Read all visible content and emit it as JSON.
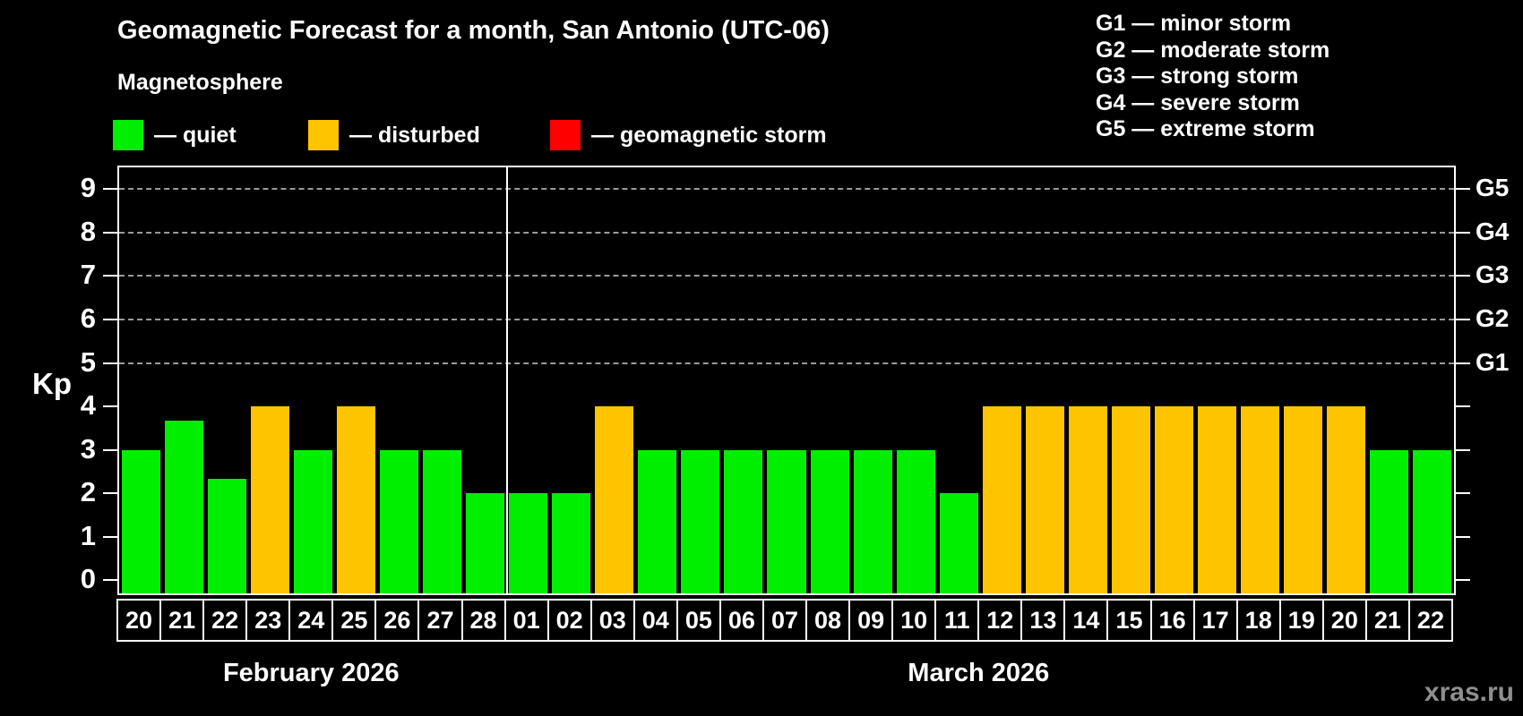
{
  "title": "Geomagnetic Forecast for a month, San Antonio (UTC-06)",
  "subtitle": "Magnetosphere",
  "legend": {
    "quiet_label": "— quiet",
    "disturbed_label": "— disturbed",
    "storm_label": "— geomagnetic storm"
  },
  "g_legend": [
    "G1 — minor storm",
    "G2 — moderate storm",
    "G3 — strong storm",
    "G4 — severe storm",
    "G5 — extreme storm"
  ],
  "watermark": "xras.ru",
  "chart_data": {
    "type": "bar",
    "title": "Geomagnetic Forecast for a month, San Antonio (UTC-06)",
    "ylabel": "Kp",
    "ylim": [
      0,
      9.5
    ],
    "yticks": [
      0,
      1,
      2,
      3,
      4,
      5,
      6,
      7,
      8,
      9
    ],
    "grid_levels": [
      5,
      6,
      7,
      8,
      9
    ],
    "right_axis": [
      {
        "kp": 5,
        "label": "G1"
      },
      {
        "kp": 6,
        "label": "G2"
      },
      {
        "kp": 7,
        "label": "G3"
      },
      {
        "kp": 8,
        "label": "G4"
      },
      {
        "kp": 9,
        "label": "G5"
      }
    ],
    "colors": {
      "quiet": "#00ee00",
      "disturbed": "#ffc400",
      "storm": "#ff0000"
    },
    "months": [
      {
        "label": "February 2026",
        "days": [
          "20",
          "21",
          "22",
          "23",
          "24",
          "25",
          "26",
          "27",
          "28"
        ],
        "values": [
          3,
          3.67,
          2.33,
          4,
          3,
          4,
          3,
          3,
          2
        ],
        "status": [
          "quiet",
          "quiet",
          "quiet",
          "disturbed",
          "quiet",
          "disturbed",
          "quiet",
          "quiet",
          "quiet"
        ]
      },
      {
        "label": "March 2026",
        "days": [
          "01",
          "02",
          "03",
          "04",
          "05",
          "06",
          "07",
          "08",
          "09",
          "10",
          "11",
          "12",
          "13",
          "14",
          "15",
          "16",
          "17",
          "18",
          "19",
          "20",
          "21",
          "22"
        ],
        "values": [
          2,
          2,
          4,
          3,
          3,
          3,
          3,
          3,
          3,
          3,
          2,
          4,
          4,
          4,
          4,
          4,
          4,
          4,
          4,
          4,
          3,
          3
        ],
        "status": [
          "quiet",
          "quiet",
          "disturbed",
          "quiet",
          "quiet",
          "quiet",
          "quiet",
          "quiet",
          "quiet",
          "quiet",
          "quiet",
          "disturbed",
          "disturbed",
          "disturbed",
          "disturbed",
          "disturbed",
          "disturbed",
          "disturbed",
          "disturbed",
          "disturbed",
          "quiet",
          "quiet"
        ]
      }
    ]
  }
}
